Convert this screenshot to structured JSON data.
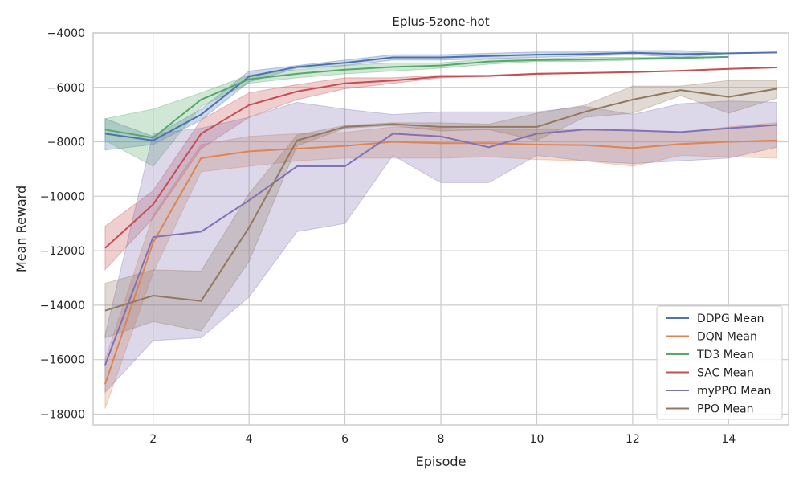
{
  "chart_data": {
    "type": "line",
    "title": "Eplus-5zone-hot",
    "xlabel": "Episode",
    "ylabel": "Mean Reward",
    "xlim": [
      0.75,
      15.25
    ],
    "ylim": [
      -18400,
      -4000
    ],
    "xticks": [
      2,
      4,
      6,
      8,
      10,
      12,
      14
    ],
    "yticks": [
      -18000,
      -16000,
      -14000,
      -12000,
      -10000,
      -8000,
      -6000,
      -4000
    ],
    "grid": true,
    "legend_position": "lower right",
    "series": [
      {
        "name": "DDPG Mean",
        "color": "#4c72b0",
        "x": [
          1,
          2,
          3,
          4,
          5,
          6,
          7,
          8,
          9,
          10,
          11,
          12,
          13,
          14,
          15
        ],
        "y": [
          -7700,
          -7950,
          -7000,
          -5600,
          -5250,
          -5100,
          -4900,
          -4900,
          -4850,
          -4800,
          -4780,
          -4730,
          -4780,
          -4750,
          -4720
        ],
        "lower": [
          -8300,
          -8100,
          -7200,
          -5800,
          -5300,
          -5200,
          -5000,
          -5000,
          -4950,
          -4900,
          -4850,
          -4800,
          -4900,
          -4750,
          -4720
        ],
        "upper": [
          -7150,
          -7800,
          -6800,
          -5400,
          -5200,
          -5000,
          -4800,
          -4800,
          -4750,
          -4700,
          -4700,
          -4650,
          -4650,
          -4750,
          -4720
        ]
      },
      {
        "name": "DQN Mean",
        "color": "#dd8452",
        "x": [
          1,
          2,
          3,
          4,
          5,
          6,
          7,
          8,
          9,
          10,
          11,
          12,
          13,
          14,
          15
        ],
        "y": [
          -16900,
          -11700,
          -8600,
          -8350,
          -8250,
          -8150,
          -8000,
          -8050,
          -8050,
          -8100,
          -8120,
          -8230,
          -8080,
          -8000,
          -7950
        ],
        "lower": [
          -17800,
          -12800,
          -9100,
          -8900,
          -8700,
          -8600,
          -8600,
          -8600,
          -8550,
          -8650,
          -8700,
          -8900,
          -8500,
          -8550,
          -8600
        ],
        "upper": [
          -16000,
          -10700,
          -8100,
          -7800,
          -7700,
          -7650,
          -7450,
          -7500,
          -7550,
          -7550,
          -7550,
          -7600,
          -7650,
          -7450,
          -7300
        ]
      },
      {
        "name": "TD3 Mean",
        "color": "#55a868",
        "x": [
          1,
          2,
          3,
          4,
          5,
          6,
          7,
          8,
          9,
          10,
          11,
          12,
          13,
          14
        ],
        "y": [
          -7550,
          -7850,
          -6450,
          -5700,
          -5500,
          -5350,
          -5250,
          -5200,
          -5050,
          -5000,
          -4980,
          -4950,
          -4920,
          -4880
        ],
        "lower": [
          -7950,
          -8900,
          -6700,
          -5850,
          -5650,
          -5500,
          -5400,
          -5300,
          -5150,
          -5050,
          -5050,
          -5000,
          -4950,
          -4880
        ],
        "upper": [
          -7150,
          -6800,
          -6200,
          -5550,
          -5350,
          -5200,
          -5100,
          -5100,
          -4950,
          -4950,
          -4900,
          -4900,
          -4900,
          -4880
        ]
      },
      {
        "name": "SAC Mean",
        "color": "#c44e52",
        "x": [
          1,
          2,
          3,
          4,
          5,
          6,
          7,
          8,
          9,
          10,
          11,
          12,
          13,
          14,
          15
        ],
        "y": [
          -11900,
          -10300,
          -7700,
          -6650,
          -6150,
          -5850,
          -5750,
          -5600,
          -5580,
          -5500,
          -5470,
          -5440,
          -5390,
          -5320,
          -5270
        ],
        "lower": [
          -12700,
          -10800,
          -8250,
          -7100,
          -6450,
          -6050,
          -5850,
          -5650,
          -5600,
          -5520,
          -5480,
          -5450,
          -5400,
          -5330,
          -5280
        ],
        "upper": [
          -11100,
          -9800,
          -7200,
          -6200,
          -5900,
          -5650,
          -5650,
          -5550,
          -5550,
          -5480,
          -5460,
          -5430,
          -5380,
          -5310,
          -5260
        ]
      },
      {
        "name": "myPPO Mean",
        "color": "#8172b3",
        "x": [
          1,
          2,
          3,
          4,
          5,
          6,
          7,
          8,
          9,
          10,
          11,
          12,
          13,
          14,
          15
        ],
        "y": [
          -16200,
          -11500,
          -11300,
          -10150,
          -8900,
          -8900,
          -7700,
          -7800,
          -8200,
          -7700,
          -7550,
          -7580,
          -7640,
          -7500,
          -7380
        ],
        "lower": [
          -17200,
          -15300,
          -15200,
          -13700,
          -11300,
          -11000,
          -8500,
          -9500,
          -9500,
          -8500,
          -8700,
          -8800,
          -8700,
          -8600,
          -8200
        ],
        "upper": [
          -15100,
          -7700,
          -7500,
          -7100,
          -6550,
          -6800,
          -7000,
          -6900,
          -6900,
          -6900,
          -6700,
          -7000,
          -6600,
          -6500,
          -6550
        ]
      },
      {
        "name": "PPO Mean",
        "color": "#937860",
        "x": [
          1,
          2,
          3,
          4,
          5,
          6,
          7,
          8,
          9,
          10,
          11,
          12,
          13,
          14,
          15
        ],
        "y": [
          -14200,
          -13650,
          -13850,
          -11150,
          -7950,
          -7450,
          -7350,
          -7450,
          -7450,
          -7450,
          -6900,
          -6450,
          -6100,
          -6350,
          -6050
        ],
        "lower": [
          -15200,
          -14600,
          -14950,
          -12400,
          -8150,
          -7500,
          -7400,
          -7600,
          -7550,
          -7950,
          -7100,
          -6950,
          -6300,
          -6950,
          -6400
        ],
        "upper": [
          -13200,
          -12700,
          -12750,
          -9900,
          -7750,
          -7400,
          -7300,
          -7300,
          -7350,
          -6950,
          -6650,
          -5950,
          -5950,
          -5750,
          -5750
        ]
      }
    ]
  }
}
